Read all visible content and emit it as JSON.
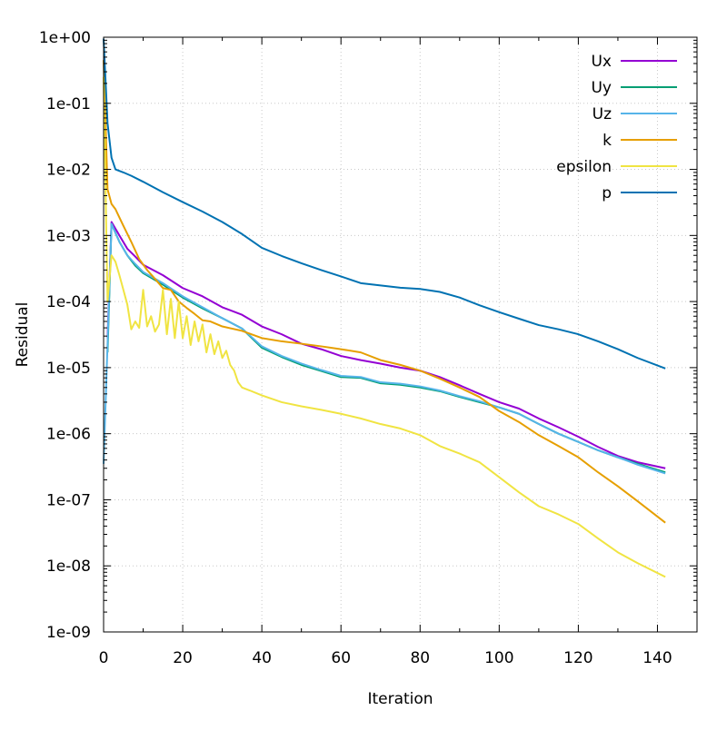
{
  "chart_data": {
    "type": "line",
    "xlabel": "Iteration",
    "ylabel": "Residual",
    "xlim": [
      0,
      150
    ],
    "ylim": [
      1e-09,
      1
    ],
    "yscale": "log",
    "grid": true,
    "legend_position": "top-right",
    "x_ticks": [
      {
        "value": 0,
        "label": "0"
      },
      {
        "value": 20,
        "label": "20"
      },
      {
        "value": 40,
        "label": "40"
      },
      {
        "value": 60,
        "label": "60"
      },
      {
        "value": 80,
        "label": "80"
      },
      {
        "value": 100,
        "label": "100"
      },
      {
        "value": 120,
        "label": "120"
      },
      {
        "value": 140,
        "label": "140"
      }
    ],
    "y_ticks": [
      {
        "value": 1,
        "label": "1e+00"
      },
      {
        "value": 0.1,
        "label": "1e-01"
      },
      {
        "value": 0.01,
        "label": "1e-02"
      },
      {
        "value": 0.001,
        "label": "1e-03"
      },
      {
        "value": 0.0001,
        "label": "1e-04"
      },
      {
        "value": 1e-05,
        "label": "1e-05"
      },
      {
        "value": 1e-06,
        "label": "1e-06"
      },
      {
        "value": 1e-07,
        "label": "1e-07"
      },
      {
        "value": 1e-08,
        "label": "1e-08"
      },
      {
        "value": 1e-09,
        "label": "1e-09"
      }
    ],
    "series": [
      {
        "name": "Ux",
        "color": "#9400d3",
        "points": [
          [
            1,
            2.8e-05
          ],
          [
            2,
            0.0016
          ],
          [
            4,
            0.001
          ],
          [
            6,
            0.00063
          ],
          [
            8,
            0.00048
          ],
          [
            10,
            0.00036
          ],
          [
            15,
            0.00025
          ],
          [
            20,
            0.00016
          ],
          [
            25,
            0.00012
          ],
          [
            30,
            8.2e-05
          ],
          [
            35,
            6.3e-05
          ],
          [
            40,
            4.2e-05
          ],
          [
            45,
            3.2e-05
          ],
          [
            50,
            2.3e-05
          ],
          [
            55,
            1.9e-05
          ],
          [
            60,
            1.5e-05
          ],
          [
            65,
            1.3e-05
          ],
          [
            70,
            1.15e-05
          ],
          [
            75,
            1e-05
          ],
          [
            80,
            9e-06
          ],
          [
            85,
            7.2e-06
          ],
          [
            90,
            5.4e-06
          ],
          [
            95,
            4e-06
          ],
          [
            100,
            3e-06
          ],
          [
            105,
            2.4e-06
          ],
          [
            110,
            1.7e-06
          ],
          [
            115,
            1.25e-06
          ],
          [
            120,
            9e-07
          ],
          [
            125,
            6.3e-07
          ],
          [
            130,
            4.6e-07
          ],
          [
            135,
            3.7e-07
          ],
          [
            142,
            3e-07
          ]
        ]
      },
      {
        "name": "Uy",
        "color": "#009e73",
        "points": [
          [
            1,
            1.7e-05
          ],
          [
            2,
            0.0015
          ],
          [
            4,
            0.0008
          ],
          [
            6,
            0.0005
          ],
          [
            8,
            0.00035
          ],
          [
            10,
            0.00027
          ],
          [
            15,
            0.00018
          ],
          [
            20,
            0.000115
          ],
          [
            25,
            7.9e-05
          ],
          [
            30,
            5.6e-05
          ],
          [
            35,
            3.9e-05
          ],
          [
            40,
            2e-05
          ],
          [
            45,
            1.45e-05
          ],
          [
            50,
            1.1e-05
          ],
          [
            55,
            8.9e-06
          ],
          [
            60,
            7.2e-06
          ],
          [
            65,
            7e-06
          ],
          [
            70,
            5.8e-06
          ],
          [
            75,
            5.5e-06
          ],
          [
            80,
            5e-06
          ],
          [
            85,
            4.4e-06
          ],
          [
            90,
            3.6e-06
          ],
          [
            95,
            3e-06
          ],
          [
            100,
            2.5e-06
          ],
          [
            105,
            2e-06
          ],
          [
            110,
            1.4e-06
          ],
          [
            115,
            1e-06
          ],
          [
            120,
            7.5e-07
          ],
          [
            125,
            5.6e-07
          ],
          [
            130,
            4.4e-07
          ],
          [
            135,
            3.5e-07
          ],
          [
            142,
            2.6e-07
          ]
        ]
      },
      {
        "name": "Uz",
        "color": "#56b4e9",
        "points": [
          [
            0,
            3.5e-07
          ],
          [
            2,
            0.0015
          ],
          [
            4,
            0.0008
          ],
          [
            6,
            0.0005
          ],
          [
            8,
            0.00037
          ],
          [
            10,
            0.00028
          ],
          [
            15,
            0.00019
          ],
          [
            20,
            0.00012
          ],
          [
            25,
            8.2e-05
          ],
          [
            30,
            5.6e-05
          ],
          [
            35,
            3.9e-05
          ],
          [
            40,
            2.1e-05
          ],
          [
            45,
            1.5e-05
          ],
          [
            50,
            1.15e-05
          ],
          [
            55,
            9.2e-06
          ],
          [
            60,
            7.5e-06
          ],
          [
            65,
            7.2e-06
          ],
          [
            70,
            6e-06
          ],
          [
            75,
            5.7e-06
          ],
          [
            80,
            5.2e-06
          ],
          [
            85,
            4.5e-06
          ],
          [
            90,
            3.7e-06
          ],
          [
            95,
            3.1e-06
          ],
          [
            100,
            2.5e-06
          ],
          [
            105,
            2e-06
          ],
          [
            110,
            1.4e-06
          ],
          [
            115,
            1e-06
          ],
          [
            120,
            7.5e-07
          ],
          [
            125,
            5.6e-07
          ],
          [
            130,
            4.4e-07
          ],
          [
            135,
            3.4e-07
          ],
          [
            142,
            2.5e-07
          ]
        ]
      },
      {
        "name": "k",
        "color": "#e69f00",
        "points": [
          [
            0,
            0.45
          ],
          [
            1,
            0.005
          ],
          [
            2,
            0.003
          ],
          [
            3,
            0.0025
          ],
          [
            5,
            0.0014
          ],
          [
            7,
            0.0008
          ],
          [
            9,
            0.00044
          ],
          [
            11,
            0.0003
          ],
          [
            13,
            0.00022
          ],
          [
            15,
            0.00016
          ],
          [
            17,
            0.00015
          ],
          [
            19,
            0.0001
          ],
          [
            21,
            8e-05
          ],
          [
            23,
            6.5e-05
          ],
          [
            25,
            5.2e-05
          ],
          [
            27,
            5e-05
          ],
          [
            30,
            4.2e-05
          ],
          [
            35,
            3.6e-05
          ],
          [
            40,
            2.8e-05
          ],
          [
            45,
            2.5e-05
          ],
          [
            50,
            2.3e-05
          ],
          [
            55,
            2.1e-05
          ],
          [
            60,
            1.9e-05
          ],
          [
            65,
            1.7e-05
          ],
          [
            70,
            1.3e-05
          ],
          [
            75,
            1.1e-05
          ],
          [
            80,
            9e-06
          ],
          [
            85,
            6.8e-06
          ],
          [
            90,
            5e-06
          ],
          [
            95,
            3.6e-06
          ],
          [
            100,
            2.2e-06
          ],
          [
            105,
            1.5e-06
          ],
          [
            110,
            9.5e-07
          ],
          [
            115,
            6.5e-07
          ],
          [
            120,
            4.4e-07
          ],
          [
            125,
            2.6e-07
          ],
          [
            130,
            1.6e-07
          ],
          [
            135,
            9.5e-08
          ],
          [
            142,
            4.5e-08
          ]
        ]
      },
      {
        "name": "epsilon",
        "color": "#f0e442",
        "points": [
          [
            0,
            0.25
          ],
          [
            1,
            0.0001
          ],
          [
            2,
            0.0005
          ],
          [
            3,
            0.0004
          ],
          [
            4,
            0.00025
          ],
          [
            5,
            0.00015
          ],
          [
            6,
            9e-05
          ],
          [
            7,
            3.8e-05
          ],
          [
            8,
            5e-05
          ],
          [
            9,
            4e-05
          ],
          [
            10,
            0.00015
          ],
          [
            11,
            4.2e-05
          ],
          [
            12,
            6e-05
          ],
          [
            13,
            3.5e-05
          ],
          [
            14,
            4.5e-05
          ],
          [
            15,
            0.00015
          ],
          [
            16,
            3.2e-05
          ],
          [
            17,
            0.00011
          ],
          [
            18,
            2.8e-05
          ],
          [
            19,
            0.0001
          ],
          [
            20,
            2.8e-05
          ],
          [
            21,
            6e-05
          ],
          [
            22,
            2.2e-05
          ],
          [
            23,
            5e-05
          ],
          [
            24,
            2.5e-05
          ],
          [
            25,
            4.5e-05
          ],
          [
            26,
            1.7e-05
          ],
          [
            27,
            3.2e-05
          ],
          [
            28,
            1.6e-05
          ],
          [
            29,
            2.5e-05
          ],
          [
            30,
            1.4e-05
          ],
          [
            31,
            1.8e-05
          ],
          [
            32,
            1.1e-05
          ],
          [
            33,
            9e-06
          ],
          [
            34,
            6e-06
          ],
          [
            35,
            5e-06
          ],
          [
            37,
            4.5e-06
          ],
          [
            40,
            3.8e-06
          ],
          [
            45,
            3e-06
          ],
          [
            50,
            2.6e-06
          ],
          [
            55,
            2.3e-06
          ],
          [
            60,
            2e-06
          ],
          [
            65,
            1.7e-06
          ],
          [
            70,
            1.4e-06
          ],
          [
            75,
            1.2e-06
          ],
          [
            80,
            9.5e-07
          ],
          [
            85,
            6.5e-07
          ],
          [
            90,
            5e-07
          ],
          [
            95,
            3.7e-07
          ],
          [
            100,
            2.2e-07
          ],
          [
            105,
            1.3e-07
          ],
          [
            110,
            8e-08
          ],
          [
            115,
            6e-08
          ],
          [
            120,
            4.3e-08
          ],
          [
            125,
            2.6e-08
          ],
          [
            130,
            1.6e-08
          ],
          [
            135,
            1.1e-08
          ],
          [
            142,
            6.8e-09
          ]
        ]
      },
      {
        "name": "p",
        "color": "#0072b2",
        "points": [
          [
            0,
            0.95
          ],
          [
            1,
            0.05
          ],
          [
            2,
            0.015
          ],
          [
            3,
            0.01
          ],
          [
            5,
            0.009
          ],
          [
            7,
            0.008
          ],
          [
            10,
            0.0065
          ],
          [
            15,
            0.0045
          ],
          [
            20,
            0.0032
          ],
          [
            25,
            0.0023
          ],
          [
            30,
            0.0016
          ],
          [
            35,
            0.00105
          ],
          [
            40,
            0.00065
          ],
          [
            45,
            0.00049
          ],
          [
            50,
            0.00038
          ],
          [
            55,
            0.0003
          ],
          [
            60,
            0.00024
          ],
          [
            65,
            0.00019
          ],
          [
            70,
            0.000175
          ],
          [
            75,
            0.000162
          ],
          [
            80,
            0.000155
          ],
          [
            85,
            0.00014
          ],
          [
            90,
            0.000115
          ],
          [
            95,
            8.8e-05
          ],
          [
            100,
            6.9e-05
          ],
          [
            105,
            5.5e-05
          ],
          [
            110,
            4.4e-05
          ],
          [
            115,
            3.8e-05
          ],
          [
            120,
            3.2e-05
          ],
          [
            125,
            2.5e-05
          ],
          [
            130,
            1.9e-05
          ],
          [
            135,
            1.4e-05
          ],
          [
            142,
            9.7e-06
          ]
        ]
      }
    ]
  }
}
